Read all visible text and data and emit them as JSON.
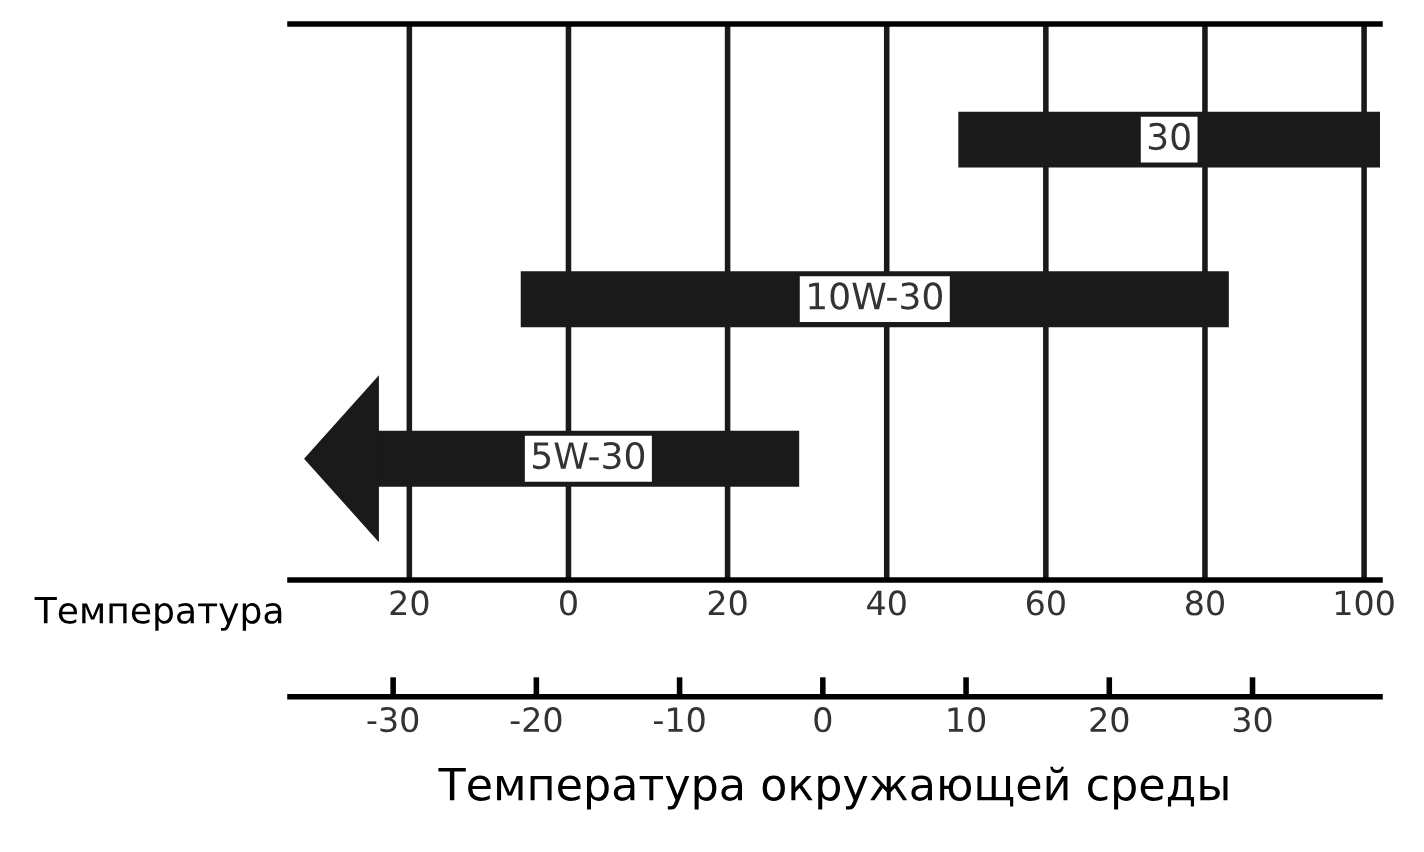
{
  "chart_data": {
    "type": "bar",
    "orientation": "horizontal",
    "categories": [
      null,
      null,
      null
    ],
    "base": [
      49,
      -6,
      -24
    ],
    "values": [
      53,
      89,
      53
    ],
    "color": "#1a1a1a",
    "xlim": [
      -35,
      102
    ],
    "xticks": [
      {
        "value": -20,
        "label": "20"
      },
      0,
      20,
      40,
      60,
      80,
      100
    ],
    "x2lim": [
      -37.2,
      38.9
    ],
    "x2ticks": [
      -30,
      -20,
      -10,
      0,
      10,
      20,
      30
    ],
    "xlabel": "Температура",
    "x2label": "Температура окружающей среды",
    "annotations": [
      "30",
      "10W-30",
      "5W-30"
    ],
    "grid": "x",
    "tick_labels": "x"
  }
}
